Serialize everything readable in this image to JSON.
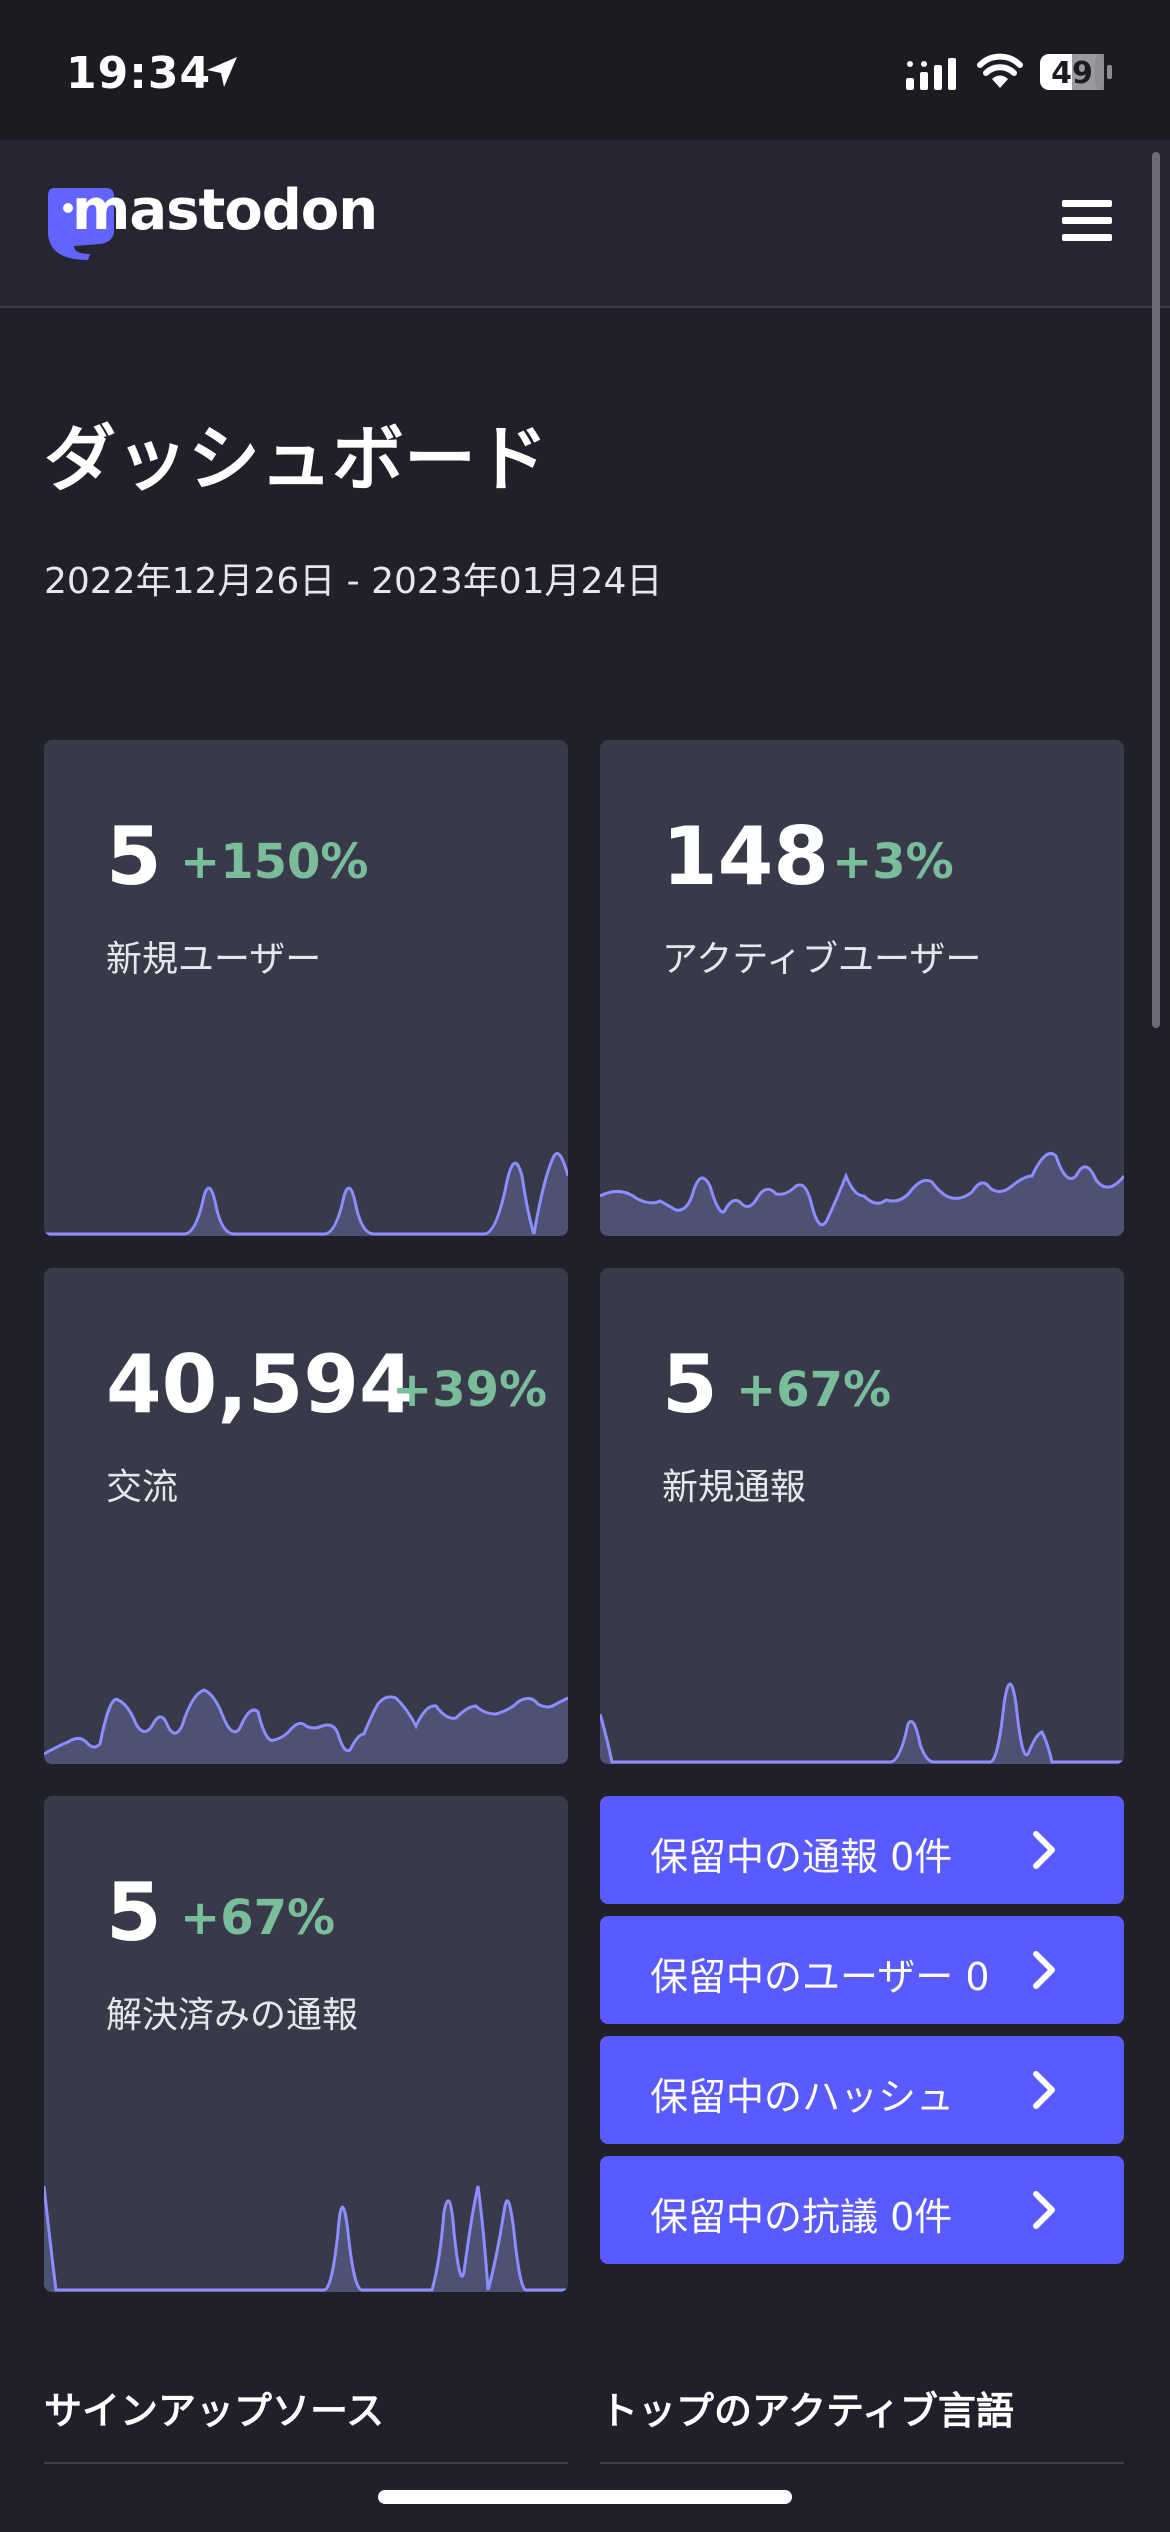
{
  "status_bar": {
    "time": "19:34",
    "battery": "49"
  },
  "header": {
    "brand": "mastodon"
  },
  "dashboard": {
    "title": "ダッシュボード",
    "date_range": "2022年12月26日 - 2023年01月24日"
  },
  "metrics": [
    {
      "value": "5",
      "change": "+150%",
      "label": "新規ユーザー"
    },
    {
      "value": "148",
      "change": "+3%",
      "label": "アクティブユーザー"
    },
    {
      "value": "40,594",
      "change": "+39%",
      "label": "交流"
    },
    {
      "value": "5",
      "change": "+67%",
      "label": "新規通報"
    },
    {
      "value": "5",
      "change": "+67%",
      "label": "解決済みの通報"
    }
  ],
  "pending": [
    {
      "label": "保留中の通報 0件"
    },
    {
      "label": "保留中のユーザー 0"
    },
    {
      "label": "保留中のハッシュ"
    },
    {
      "label": "保留中の抗議 0件"
    }
  ],
  "sections": {
    "signup_sources": "サインアップソース",
    "top_languages": "トップのアクティブ言語"
  },
  "colors": {
    "background": "#1f2029",
    "card": "#383a4a",
    "accent": "#595aff",
    "positive": "#79bd9a",
    "sparkline": "#8c8dff"
  }
}
